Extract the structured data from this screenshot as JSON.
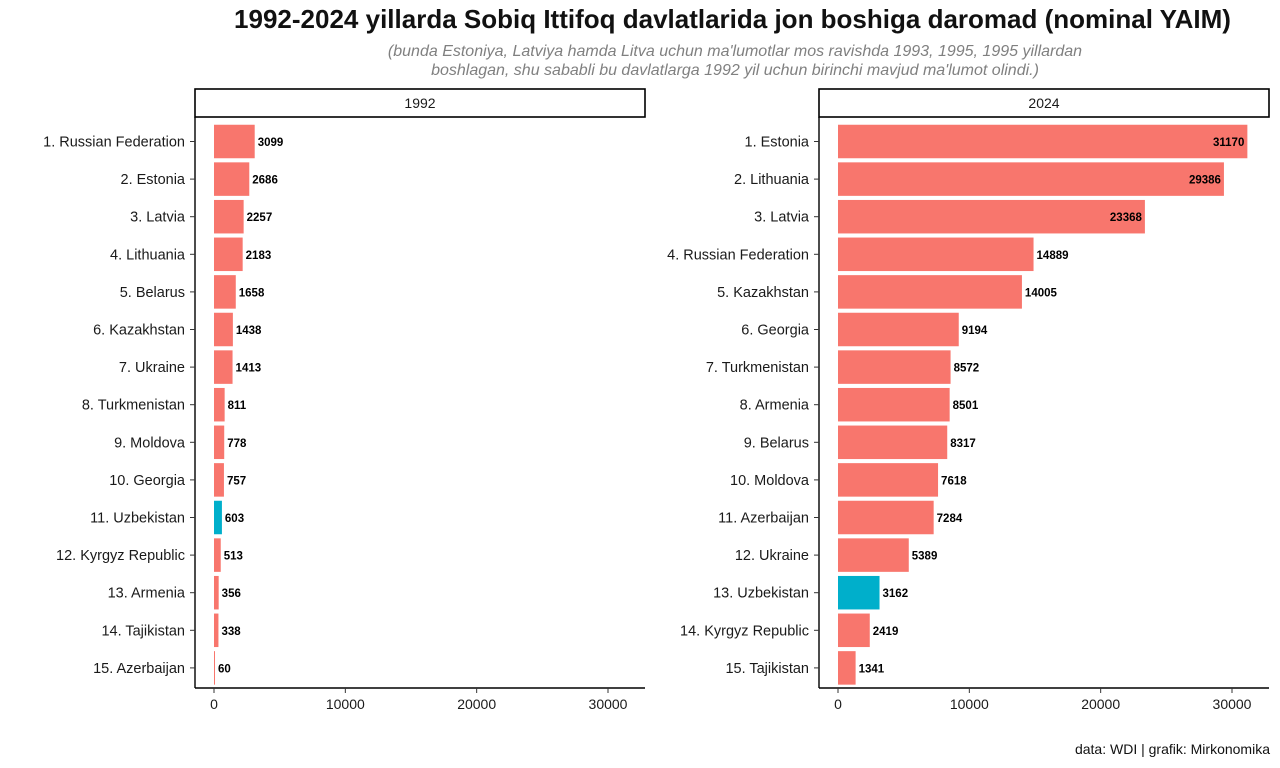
{
  "title": "1992-2024 yillarda  Sobiq Ittifoq davlatlarida jon boshiga daromad (nominal YAIM)",
  "subtitle_line1": "(bunda Estoniya, Latviya hamda Litva uchun ma'lumotlar mos ravishda 1993, 1995, 1995 yillardan",
  "subtitle_line2": "boshlagan, shu sababli bu davlatlarga 1992 yil uchun birinchi mavjud ma'lumot olindi.)",
  "caption": "data: WDI | grafik: Mirkonomika",
  "colors": {
    "bar": "#F8766D",
    "highlight": "#00AFCB"
  },
  "chart_data": [
    {
      "type": "bar",
      "orientation": "horizontal",
      "facet": "1992",
      "xlim": [
        0,
        32000
      ],
      "xticks": [
        0,
        10000,
        20000,
        30000
      ],
      "highlight": "11. Uzbekistan",
      "categories": [
        "1. Russian Federation",
        "2. Estonia",
        "3. Latvia",
        "4. Lithuania",
        "5. Belarus",
        "6. Kazakhstan",
        "7. Ukraine",
        "8. Turkmenistan",
        "9. Moldova",
        "10. Georgia",
        "11. Uzbekistan",
        "12. Kyrgyz Republic",
        "13. Armenia",
        "14. Tajikistan",
        "15. Azerbaijan"
      ],
      "values": [
        3099,
        2686,
        2257,
        2183,
        1658,
        1438,
        1413,
        811,
        778,
        757,
        603,
        513,
        356,
        338,
        60
      ]
    },
    {
      "type": "bar",
      "orientation": "horizontal",
      "facet": "2024",
      "xlim": [
        0,
        32000
      ],
      "xticks": [
        0,
        10000,
        20000,
        30000
      ],
      "highlight": "13. Uzbekistan",
      "categories": [
        "1. Estonia",
        "2. Lithuania",
        "3. Latvia",
        "4. Russian Federation",
        "5. Kazakhstan",
        "6. Georgia",
        "7. Turkmenistan",
        "8. Armenia",
        "9. Belarus",
        "10. Moldova",
        "11. Azerbaijan",
        "12. Ukraine",
        "13. Uzbekistan",
        "14. Kyrgyz Republic",
        "15. Tajikistan"
      ],
      "values": [
        31170,
        29386,
        23368,
        14889,
        14005,
        9194,
        8572,
        8501,
        8317,
        7618,
        7284,
        5389,
        3162,
        2419,
        1341
      ]
    }
  ]
}
